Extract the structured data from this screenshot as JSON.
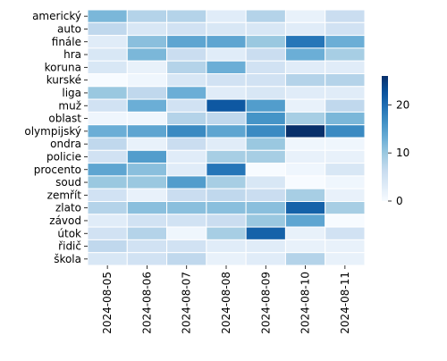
{
  "chart_data": {
    "type": "heatmap",
    "rows": [
      "americký",
      "auto",
      "finále",
      "hra",
      "koruna",
      "kurské",
      "liga",
      "muž",
      "oblast",
      "olympijský",
      "ondra",
      "policie",
      "procento",
      "soud",
      "zemřít",
      "zlato",
      "závod",
      "útok",
      "řidič",
      "škola"
    ],
    "columns": [
      "2024-08-05",
      "2024-08-06",
      "2024-08-07",
      "2024-08-08",
      "2024-08-09",
      "2024-08-10",
      "2024-08-11"
    ],
    "values": [
      [
        12,
        8,
        8,
        3,
        8,
        2,
        6
      ],
      [
        7,
        4,
        5,
        4,
        4,
        3,
        5
      ],
      [
        3,
        11,
        14,
        14,
        10,
        19,
        13
      ],
      [
        4,
        12,
        6,
        3,
        6,
        13,
        9
      ],
      [
        4,
        2,
        8,
        13,
        5,
        3,
        3
      ],
      [
        0,
        1,
        4,
        5,
        5,
        8,
        8
      ],
      [
        10,
        7,
        13,
        3,
        4,
        3,
        3
      ],
      [
        5,
        13,
        5,
        22,
        15,
        2,
        7
      ],
      [
        1,
        1,
        8,
        7,
        16,
        9,
        12
      ],
      [
        13,
        14,
        17,
        14,
        17,
        26,
        17
      ],
      [
        7,
        2,
        6,
        3,
        10,
        1,
        1
      ],
      [
        5,
        15,
        3,
        9,
        9,
        2,
        2
      ],
      [
        14,
        11,
        3,
        19,
        0,
        1,
        4
      ],
      [
        10,
        10,
        15,
        9,
        4,
        0,
        1
      ],
      [
        5,
        2,
        6,
        7,
        6,
        9,
        2
      ],
      [
        8,
        11,
        11,
        11,
        11,
        21,
        9
      ],
      [
        3,
        5,
        5,
        6,
        10,
        14,
        0
      ],
      [
        5,
        8,
        1,
        9,
        21,
        2,
        5
      ],
      [
        7,
        5,
        5,
        3,
        3,
        2,
        2
      ],
      [
        4,
        5,
        7,
        2,
        3,
        8,
        2
      ]
    ],
    "colorbar": {
      "min": 0,
      "max": 26,
      "ticks": [
        0,
        10,
        20
      ]
    },
    "colormap": [
      "#f7fbff",
      "#deebf7",
      "#c6dbef",
      "#9ecae1",
      "#6baed6",
      "#4292c6",
      "#2171b5",
      "#08519c",
      "#08306b"
    ],
    "cell_border_color": "#ffffff",
    "title": "",
    "xlabel": "",
    "ylabel": ""
  }
}
